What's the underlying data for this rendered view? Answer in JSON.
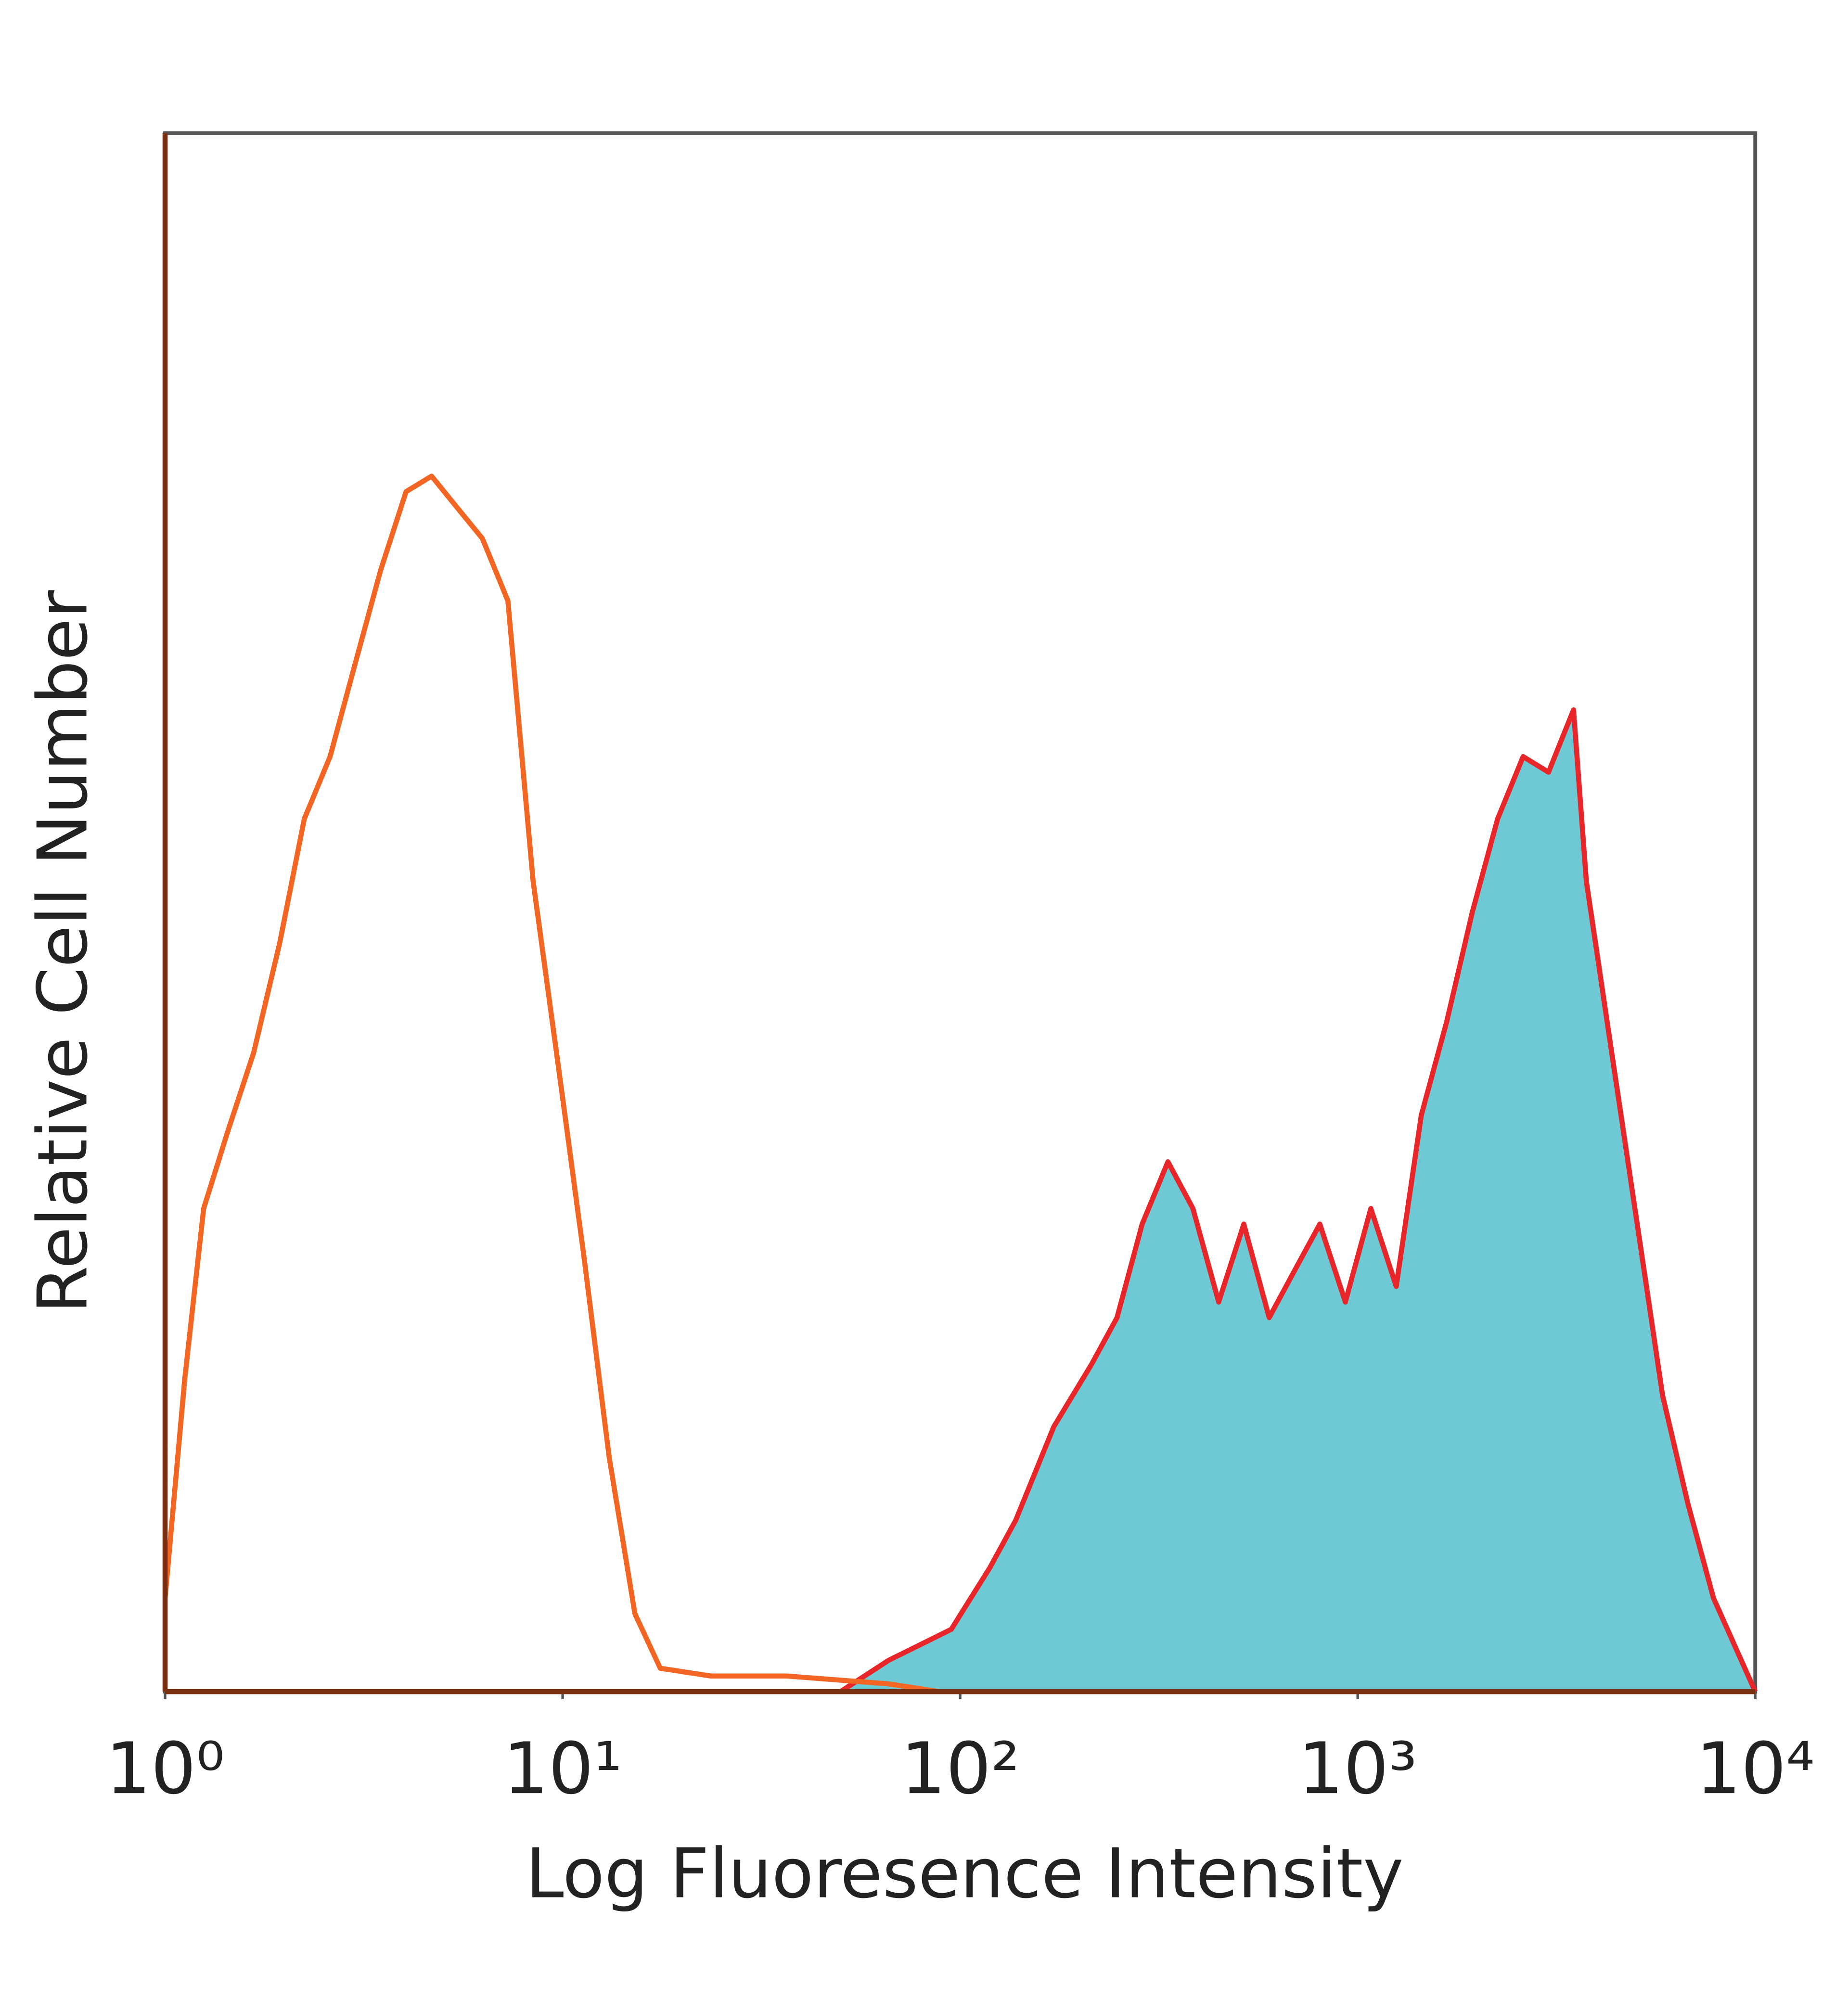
{
  "chart_data": {
    "type": "histogram-overlay",
    "x_label": "Log Fluoresence Intensity",
    "y_label": "Relative Cell Number",
    "xscale": "log",
    "xlim": [
      1,
      10000
    ],
    "ylim": [
      0,
      100
    ],
    "xticks": [
      {
        "value": 1,
        "label": "10⁰"
      },
      {
        "value": 10,
        "label": "10¹"
      },
      {
        "value": 100,
        "label": "10²"
      },
      {
        "value": 1000,
        "label": "10³"
      },
      {
        "value": 10000,
        "label": "10⁴"
      }
    ],
    "series": [
      {
        "color": "#f26522",
        "x": [
          1.0,
          1.12,
          1.25,
          1.44,
          1.67,
          1.94,
          2.24,
          2.6,
          3.01,
          3.49,
          4.04,
          4.68,
          5.42,
          6.28,
          7.28,
          8.43,
          9.77,
          11.3,
          13.1,
          15.2,
          17.6,
          23.6,
          36.6,
          66,
          88.5,
          10000
        ],
        "values": [
          6,
          20,
          31,
          36,
          41,
          48,
          56,
          60,
          66,
          72,
          77,
          78,
          76,
          74,
          70,
          52,
          40,
          28,
          15,
          5,
          1.5,
          1,
          1,
          0.5,
          0,
          0
        ]
      },
      {
        "color": "#e8262a",
        "fill": "#6ec9d5",
        "x": [
          50,
          66,
          95,
          119,
          138,
          172,
          214,
          248,
          287,
          333,
          385,
          447,
          517,
          599,
          693,
          803,
          931,
          1079,
          1250,
          1446,
          1675,
          1941,
          2249,
          2606,
          3020,
          3491,
          3758,
          4355,
          5047,
          5848,
          6776,
          7852,
          10000
        ],
        "values": [
          0,
          2,
          4,
          8,
          11,
          17,
          21,
          24,
          30,
          34,
          31,
          25,
          30,
          24,
          27,
          30,
          25,
          31,
          26,
          37,
          43,
          50,
          56,
          60,
          59,
          63,
          52,
          41,
          30,
          19,
          12,
          6,
          0
        ]
      }
    ]
  }
}
